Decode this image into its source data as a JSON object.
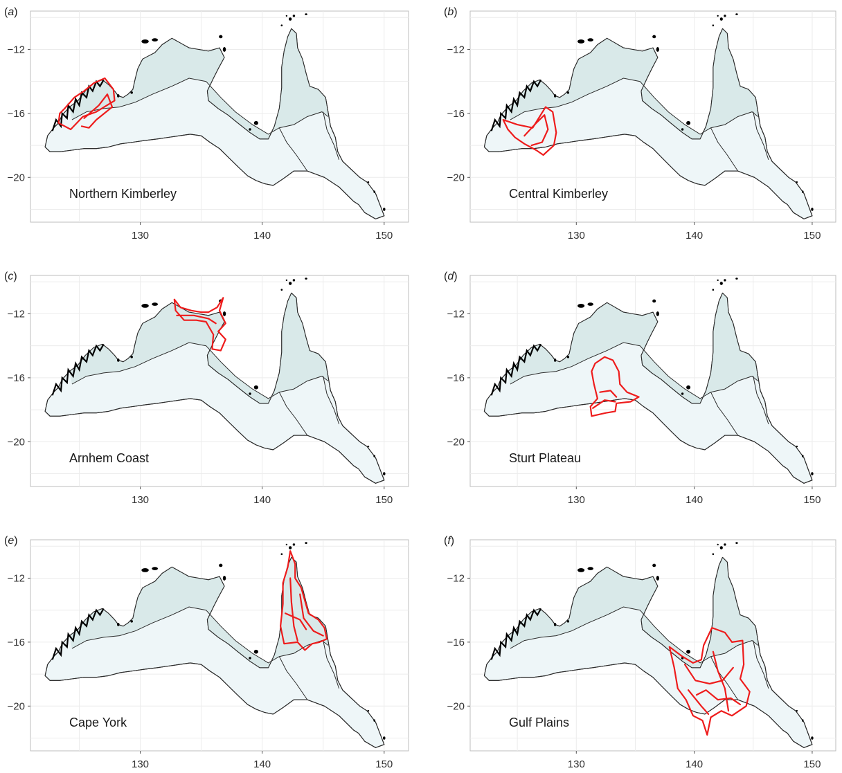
{
  "colors": {
    "land_fill": "#eef6f8",
    "north_fill": "#d9e9e9",
    "outline": "#2b2b2b",
    "highlight": "#ee1c1c",
    "grid": "#ececec",
    "frame": "#bdbdbd"
  },
  "chart_data": [
    {
      "type": "map",
      "panel_label": "a",
      "region_label": "Northern Kimberley",
      "x_ticks": [
        "130",
        "140",
        "150"
      ],
      "y_ticks": [
        "−12",
        "−16",
        "−20"
      ],
      "xlim": [
        121,
        152
      ],
      "ylim": [
        -22.8,
        -9.6
      ],
      "grid": true,
      "highlight": [
        [
          [
            123.8,
            -15.7
          ],
          [
            124.6,
            -15.0
          ],
          [
            125.4,
            -14.6
          ],
          [
            126.2,
            -14.1
          ],
          [
            127.1,
            -13.8
          ],
          [
            127.8,
            -14.5
          ],
          [
            127.9,
            -15.2
          ],
          [
            126.4,
            -15.9
          ],
          [
            125.3,
            -16.2
          ],
          [
            124.3,
            -17.0
          ],
          [
            123.3,
            -16.6
          ],
          [
            123.4,
            -16.0
          ]
        ],
        [
          [
            125.4,
            -16.3
          ],
          [
            126.6,
            -15.5
          ],
          [
            127.3,
            -14.8
          ],
          [
            127.7,
            -15.6
          ],
          [
            126.4,
            -16.4
          ],
          [
            125.8,
            -16.9
          ],
          [
            125.2,
            -16.8
          ]
        ]
      ]
    },
    {
      "type": "map",
      "panel_label": "b",
      "region_label": "Central Kimberley",
      "x_ticks": [
        "130",
        "140",
        "150"
      ],
      "y_ticks": [
        "−12",
        "−16",
        "−20"
      ],
      "xlim": [
        121,
        152
      ],
      "ylim": [
        -22.8,
        -9.6
      ],
      "grid": true,
      "highlight": [
        [
          [
            123.8,
            -16.4
          ],
          [
            125.0,
            -16.7
          ],
          [
            126.3,
            -16.9
          ],
          [
            127.4,
            -15.6
          ],
          [
            128.0,
            -15.9
          ],
          [
            128.3,
            -17.2
          ],
          [
            128.1,
            -18.0
          ],
          [
            127.2,
            -18.6
          ],
          [
            126.6,
            -18.3
          ],
          [
            125.6,
            -17.9
          ],
          [
            124.8,
            -17.5
          ],
          [
            124.2,
            -17.0
          ]
        ],
        [
          [
            125.6,
            -17.4
          ],
          [
            126.6,
            -16.6
          ],
          [
            127.3,
            -16.1
          ],
          [
            127.6,
            -17.0
          ],
          [
            127.1,
            -17.8
          ],
          [
            126.2,
            -18.0
          ]
        ]
      ]
    },
    {
      "type": "map",
      "panel_label": "c",
      "region_label": "Arnhem Coast",
      "x_ticks": [
        "130",
        "140",
        "150"
      ],
      "y_ticks": [
        "−12",
        "−16",
        "−20"
      ],
      "xlim": [
        121,
        152
      ],
      "ylim": [
        -22.8,
        -9.6
      ],
      "grid": true,
      "highlight": [
        [
          [
            132.8,
            -11.1
          ],
          [
            133.3,
            -11.6
          ],
          [
            134.2,
            -11.8
          ],
          [
            135.0,
            -11.9
          ],
          [
            135.6,
            -11.9
          ],
          [
            136.3,
            -11.6
          ],
          [
            136.8,
            -11.0
          ],
          [
            136.5,
            -11.8
          ],
          [
            137.0,
            -12.6
          ],
          [
            136.4,
            -13.1
          ],
          [
            137.0,
            -13.6
          ],
          [
            136.6,
            -14.3
          ],
          [
            135.9,
            -14.2
          ],
          [
            136.0,
            -13.3
          ],
          [
            135.4,
            -12.5
          ],
          [
            134.6,
            -12.4
          ],
          [
            133.6,
            -12.4
          ],
          [
            132.9,
            -11.8
          ]
        ],
        [
          [
            133.0,
            -12.1
          ],
          [
            134.4,
            -12.1
          ],
          [
            135.6,
            -12.3
          ],
          [
            136.2,
            -12.6
          ]
        ]
      ]
    },
    {
      "type": "map",
      "panel_label": "d",
      "region_label": "Sturt Plateau",
      "x_ticks": [
        "130",
        "140",
        "150"
      ],
      "y_ticks": [
        "−12",
        "−16",
        "−20"
      ],
      "xlim": [
        121,
        152
      ],
      "ylim": [
        -22.8,
        -9.6
      ],
      "grid": true,
      "highlight": [
        [
          [
            131.6,
            -15.1
          ],
          [
            132.4,
            -14.7
          ],
          [
            133.1,
            -14.9
          ],
          [
            133.6,
            -15.6
          ],
          [
            133.7,
            -16.4
          ],
          [
            134.3,
            -16.9
          ],
          [
            135.3,
            -17.2
          ],
          [
            134.6,
            -17.5
          ],
          [
            133.4,
            -17.6
          ],
          [
            133.3,
            -18.1
          ],
          [
            132.5,
            -18.2
          ],
          [
            131.3,
            -18.4
          ],
          [
            131.2,
            -17.8
          ],
          [
            131.8,
            -17.3
          ],
          [
            131.5,
            -16.4
          ],
          [
            131.3,
            -15.6
          ]
        ],
        [
          [
            131.4,
            -17.9
          ],
          [
            132.4,
            -17.4
          ],
          [
            133.3,
            -17.5
          ]
        ],
        [
          [
            132.0,
            -16.9
          ],
          [
            132.9,
            -16.8
          ],
          [
            133.4,
            -17.2
          ]
        ]
      ]
    },
    {
      "type": "map",
      "panel_label": "e",
      "region_label": "Cape York",
      "x_ticks": [
        "130",
        "140",
        "150"
      ],
      "y_ticks": [
        "−12",
        "−16",
        "−20"
      ],
      "xlim": [
        121,
        152
      ],
      "ylim": [
        -22.8,
        -9.6
      ],
      "grid": true,
      "highlight": [
        [
          [
            142.3,
            -10.3
          ],
          [
            142.7,
            -11.1
          ],
          [
            142.7,
            -12.0
          ],
          [
            143.2,
            -12.6
          ],
          [
            143.5,
            -13.4
          ],
          [
            143.8,
            -14.2
          ],
          [
            144.6,
            -14.6
          ],
          [
            145.1,
            -15.1
          ],
          [
            145.3,
            -15.8
          ],
          [
            144.7,
            -16.0
          ],
          [
            144.1,
            -16.1
          ],
          [
            143.5,
            -16.5
          ],
          [
            142.9,
            -16.0
          ],
          [
            141.8,
            -16.1
          ],
          [
            141.5,
            -15.0
          ],
          [
            141.7,
            -13.6
          ],
          [
            141.7,
            -12.3
          ],
          [
            142.1,
            -11.3
          ]
        ],
        [
          [
            142.3,
            -12.0
          ],
          [
            142.4,
            -13.5
          ],
          [
            142.6,
            -15.0
          ],
          [
            142.9,
            -15.9
          ]
        ],
        [
          [
            143.1,
            -13.0
          ],
          [
            143.4,
            -14.5
          ],
          [
            144.2,
            -15.3
          ],
          [
            145.0,
            -15.6
          ]
        ],
        [
          [
            141.9,
            -14.2
          ],
          [
            143.1,
            -14.6
          ],
          [
            143.6,
            -15.2
          ]
        ]
      ]
    },
    {
      "type": "map",
      "panel_label": "f",
      "region_label": "Gulf Plains",
      "x_ticks": [
        "130",
        "140",
        "150"
      ],
      "y_ticks": [
        "−12",
        "−16",
        "−20"
      ],
      "xlim": [
        121,
        152
      ],
      "ylim": [
        -22.8,
        -9.6
      ],
      "grid": true,
      "highlight": [
        [
          [
            137.9,
            -16.3
          ],
          [
            139.0,
            -16.9
          ],
          [
            139.9,
            -17.3
          ],
          [
            140.6,
            -17.1
          ],
          [
            140.8,
            -16.2
          ],
          [
            141.5,
            -15.1
          ],
          [
            142.6,
            -15.4
          ],
          [
            143.2,
            -16.0
          ],
          [
            144.1,
            -15.9
          ],
          [
            144.2,
            -17.4
          ],
          [
            143.9,
            -18.3
          ],
          [
            144.7,
            -19.1
          ],
          [
            144.4,
            -20.0
          ],
          [
            143.2,
            -20.6
          ],
          [
            142.3,
            -20.3
          ],
          [
            141.4,
            -20.7
          ],
          [
            141.1,
            -21.8
          ],
          [
            140.7,
            -20.9
          ],
          [
            139.9,
            -20.6
          ],
          [
            139.3,
            -19.6
          ],
          [
            138.6,
            -18.9
          ],
          [
            138.3,
            -17.6
          ]
        ],
        [
          [
            139.2,
            -17.4
          ],
          [
            140.1,
            -18.4
          ],
          [
            141.3,
            -18.6
          ],
          [
            142.4,
            -18.4
          ],
          [
            143.3,
            -17.6
          ]
        ],
        [
          [
            140.2,
            -19.3
          ],
          [
            141.0,
            -19.0
          ],
          [
            142.0,
            -19.6
          ],
          [
            143.1,
            -19.5
          ],
          [
            143.9,
            -19.9
          ]
        ],
        [
          [
            141.6,
            -16.6
          ],
          [
            142.0,
            -17.8
          ],
          [
            142.6,
            -18.9
          ],
          [
            142.9,
            -20.3
          ]
        ],
        [
          [
            139.5,
            -19.0
          ],
          [
            140.6,
            -20.0
          ],
          [
            141.2,
            -20.5
          ]
        ]
      ]
    }
  ]
}
